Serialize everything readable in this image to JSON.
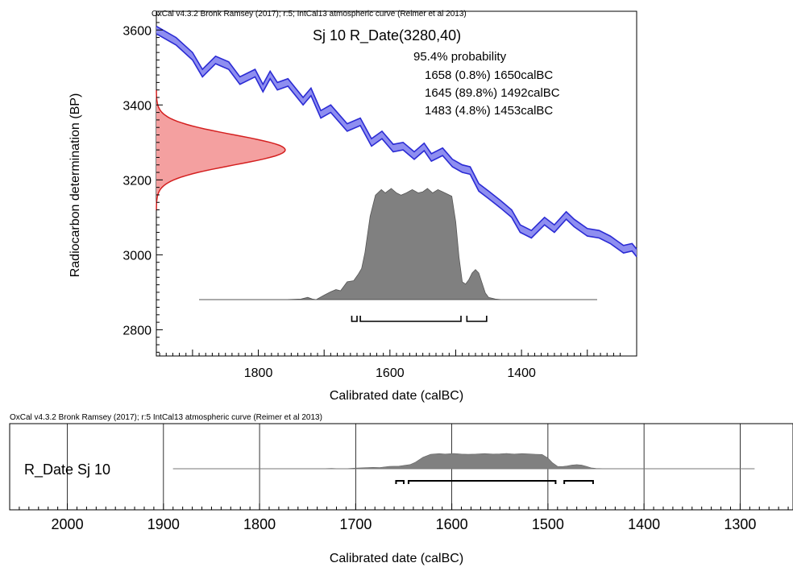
{
  "chart_data": [
    {
      "type": "area",
      "header": "OxCal v4.3.2 Bronk Ramsey (2017); r:5; IntCal13 atmospheric curve (Reimer et al 2013)",
      "title": "Sj 10 R_Date(3280,40)",
      "annotation": {
        "heading": "95.4% probability",
        "ranges": [
          "1658 (0.8%) 1650calBC",
          "1645 (89.8%) 1492calBC",
          "1483 (4.8%) 1453calBC"
        ]
      },
      "xlabel": "Calibrated date (calBC)",
      "ylabel": "Radiocarbon determination (BP)",
      "x_ticks": [
        1800,
        1600,
        1400
      ],
      "y_ticks": [
        3600,
        3400,
        3200,
        3000,
        2800
      ],
      "xlim": [
        1955,
        1225
      ],
      "ylim": [
        2730,
        3650
      ],
      "calibration_curve": {
        "color": "#2b2bd4",
        "fill": "#8e8ef0",
        "years": [
          1955,
          1925,
          1900,
          1885,
          1865,
          1845,
          1828,
          1805,
          1793,
          1782,
          1771,
          1755,
          1732,
          1720,
          1705,
          1690,
          1665,
          1645,
          1628,
          1612,
          1595,
          1580,
          1563,
          1548,
          1537,
          1520,
          1505,
          1490,
          1478,
          1465,
          1450,
          1432,
          1415,
          1402,
          1385,
          1365,
          1350,
          1332,
          1320,
          1300,
          1282,
          1265,
          1245,
          1232,
          1225
        ],
        "bp": [
          3600,
          3570,
          3530,
          3485,
          3520,
          3505,
          3465,
          3485,
          3445,
          3480,
          3450,
          3460,
          3410,
          3435,
          3375,
          3390,
          3340,
          3355,
          3300,
          3320,
          3285,
          3290,
          3265,
          3288,
          3260,
          3275,
          3245,
          3230,
          3225,
          3180,
          3160,
          3135,
          3110,
          3070,
          3055,
          3090,
          3070,
          3105,
          3085,
          3060,
          3055,
          3040,
          3015,
          3020,
          3005
        ],
        "error": 10
      },
      "measurement": {
        "mean": 3280,
        "sd": 40,
        "color": "#d42020",
        "fill": "#f4a0a0"
      },
      "posterior": {
        "color": "#808080",
        "baseline_range": [
          1890,
          1285
        ],
        "years": [
          1890,
          1760,
          1735,
          1725,
          1718,
          1712,
          1700,
          1690,
          1682,
          1675,
          1665,
          1655,
          1648,
          1643,
          1638,
          1630,
          1622,
          1613,
          1607,
          1598,
          1590,
          1583,
          1575,
          1566,
          1557,
          1550,
          1543,
          1535,
          1527,
          1520,
          1513,
          1506,
          1500,
          1495,
          1490,
          1485,
          1480,
          1475,
          1470,
          1465,
          1460,
          1455,
          1450,
          1440,
          1430,
          1285
        ],
        "density": [
          0,
          0,
          0.005,
          0.02,
          0.005,
          0.0,
          0.04,
          0.07,
          0.09,
          0.08,
          0.16,
          0.17,
          0.23,
          0.28,
          0.42,
          0.75,
          0.94,
          0.99,
          0.96,
          1.0,
          0.96,
          0.94,
          0.96,
          0.99,
          0.96,
          0.97,
          1.0,
          0.96,
          0.99,
          0.97,
          0.95,
          0.93,
          0.7,
          0.38,
          0.16,
          0.14,
          0.18,
          0.24,
          0.27,
          0.24,
          0.15,
          0.06,
          0.02,
          0.005,
          0.0,
          0
        ]
      },
      "hpd_ranges_calBC": [
        [
          1658,
          1650
        ],
        [
          1645,
          1492
        ],
        [
          1483,
          1453
        ]
      ]
    },
    {
      "type": "area",
      "header": "OxCal v4.3.2 Bronk Ramsey (2017); r:5 IntCal13 atmospheric curve (Reimer et al 2013)",
      "row_label": "R_Date Sj 10",
      "xlabel": "Calibrated date (calBC)",
      "x_ticks": [
        2000,
        1900,
        1800,
        1700,
        1600,
        1500,
        1400,
        1300
      ],
      "xlim": [
        2060,
        1245
      ],
      "grid": true,
      "hpd_ranges_calBC": [
        [
          1658,
          1650
        ],
        [
          1645,
          1492
        ],
        [
          1483,
          1453
        ]
      ]
    }
  ]
}
